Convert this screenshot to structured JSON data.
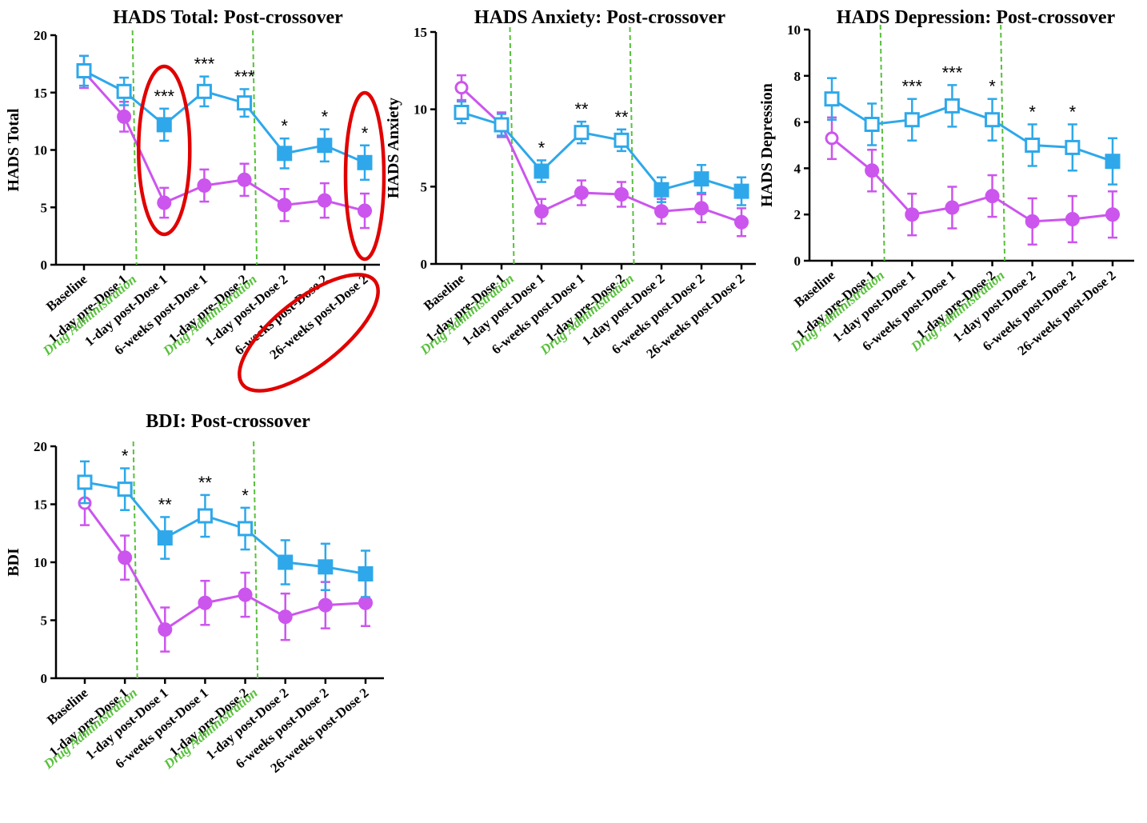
{
  "colors": {
    "treated": "#cc55ee",
    "control": "#2ea8ea",
    "marker_line": "#57c13a",
    "drug_text": "#57c13a",
    "highlight": "#e10000"
  },
  "drug_label": "Drug Administration",
  "chart_data": [
    {
      "type": "line",
      "title": "HADS Total: Post-crossover",
      "ylabel": "HADS Total",
      "ylim": [
        0,
        20
      ],
      "yticks": [
        "0",
        "5",
        "10",
        "15",
        "20"
      ],
      "categories": [
        "Baseline",
        "1-day pre-Dose 1",
        "1-day post-Dose 1",
        "6-weeks post-Dose 1",
        "1-day pre-Dose 2",
        "1-day post-Dose 2",
        "6-weeks post-Dose 2",
        "26-weeks post-Dose 2"
      ],
      "series": [
        {
          "role": "control",
          "values": [
            16.9,
            15.1,
            12.2,
            15.1,
            14.1,
            9.7,
            10.4,
            8.9
          ],
          "err": [
            1.3,
            1.2,
            1.4,
            1.3,
            1.2,
            1.3,
            1.4,
            1.5
          ],
          "open": [
            true,
            true,
            false,
            true,
            true,
            false,
            false,
            false
          ]
        },
        {
          "role": "treated",
          "values": [
            16.8,
            12.9,
            5.4,
            6.9,
            7.4,
            5.2,
            5.6,
            4.7
          ],
          "err": [
            1.4,
            1.3,
            1.3,
            1.4,
            1.4,
            1.4,
            1.5,
            1.5
          ],
          "open": [
            true,
            false,
            false,
            false,
            false,
            false,
            false,
            false
          ]
        }
      ],
      "significance": [
        "",
        "",
        "***",
        "***",
        "***",
        "*",
        "*",
        "*"
      ],
      "drug_after": [
        1,
        4
      ],
      "highlights": [
        "1-day post-Dose 1",
        "26-weeks post-Dose 2"
      ]
    },
    {
      "type": "line",
      "title": "HADS Anxiety: Post-crossover",
      "ylabel": "HADS Anxiety",
      "ylim": [
        0,
        15
      ],
      "yticks": [
        "0",
        "5",
        "10",
        "15"
      ],
      "categories": [
        "Baseline",
        "1-day pre-Dose 1",
        "1-day post-Dose 1",
        "6-weeks post-Dose 1",
        "1-day pre-Dose 2",
        "1-day post-Dose 2",
        "6-weeks post-Dose 2",
        "26-weeks post-Dose 2"
      ],
      "series": [
        {
          "role": "control",
          "values": [
            9.8,
            9.0,
            6.0,
            8.5,
            8.0,
            4.8,
            5.5,
            4.7
          ],
          "err": [
            0.7,
            0.7,
            0.7,
            0.7,
            0.7,
            0.8,
            0.9,
            0.9
          ],
          "open": [
            true,
            true,
            false,
            true,
            true,
            false,
            false,
            false
          ]
        },
        {
          "role": "treated",
          "values": [
            11.4,
            9.0,
            3.4,
            4.6,
            4.5,
            3.4,
            3.6,
            2.7
          ],
          "err": [
            0.8,
            0.8,
            0.8,
            0.8,
            0.8,
            0.8,
            0.9,
            0.9
          ],
          "open": [
            true,
            false,
            false,
            false,
            false,
            false,
            false,
            false
          ]
        }
      ],
      "significance": [
        "",
        "",
        "*",
        "**",
        "**",
        "",
        "",
        ""
      ],
      "drug_after": [
        1,
        4
      ],
      "highlights": []
    },
    {
      "type": "line",
      "title": "HADS Depression: Post-crossover",
      "ylabel": "HADS Depression",
      "ylim": [
        0,
        10
      ],
      "yticks": [
        "0",
        "2",
        "4",
        "6",
        "8",
        "10"
      ],
      "categories": [
        "Baseline",
        "1-day pre-Dose 1",
        "1-day post-Dose 1",
        "6-weeks post-Dose 1",
        "1-day pre-Dose 2",
        "1-day post-Dose 2",
        "6-weeks post-Dose 2",
        "26-weeks post-Dose 2"
      ],
      "series": [
        {
          "role": "control",
          "values": [
            7.0,
            5.9,
            6.1,
            6.7,
            6.1,
            5.0,
            4.9,
            4.3
          ],
          "err": [
            0.9,
            0.9,
            0.9,
            0.9,
            0.9,
            0.9,
            1.0,
            1.0
          ],
          "open": [
            true,
            true,
            true,
            true,
            true,
            true,
            true,
            false
          ]
        },
        {
          "role": "treated",
          "values": [
            5.3,
            3.9,
            2.0,
            2.3,
            2.8,
            1.7,
            1.8,
            2.0
          ],
          "err": [
            0.9,
            0.9,
            0.9,
            0.9,
            0.9,
            1.0,
            1.0,
            1.0
          ],
          "open": [
            true,
            false,
            false,
            false,
            false,
            false,
            false,
            false
          ]
        }
      ],
      "significance": [
        "",
        "",
        "***",
        "***",
        "*",
        "*",
        "*",
        ""
      ],
      "drug_after": [
        1,
        4
      ],
      "highlights": []
    },
    {
      "type": "line",
      "title": "BDI: Post-crossover",
      "ylabel": "BDI",
      "ylim": [
        0,
        20
      ],
      "yticks": [
        "0",
        "5",
        "10",
        "15",
        "20"
      ],
      "categories": [
        "Baseline",
        "1-day pre-Dose 1",
        "1-day post-Dose 1",
        "6-weeks post-Dose 1",
        "1-day pre-Dose 2",
        "1-day post-Dose 2",
        "6-weeks post-Dose 2",
        "26-weeks post-Dose 2"
      ],
      "series": [
        {
          "role": "control",
          "values": [
            16.9,
            16.3,
            12.1,
            14.0,
            12.9,
            10.0,
            9.6,
            9.0
          ],
          "err": [
            1.8,
            1.8,
            1.8,
            1.8,
            1.8,
            1.9,
            2.0,
            2.0
          ],
          "open": [
            true,
            true,
            false,
            true,
            true,
            false,
            false,
            false
          ]
        },
        {
          "role": "treated",
          "values": [
            15.1,
            10.4,
            4.2,
            6.5,
            7.2,
            5.3,
            6.3,
            6.5
          ],
          "err": [
            1.9,
            1.9,
            1.9,
            1.9,
            1.9,
            2.0,
            2.0,
            2.0
          ],
          "open": [
            true,
            false,
            false,
            false,
            false,
            false,
            false,
            false
          ]
        }
      ],
      "significance": [
        "",
        "*",
        "**",
        "**",
        "*",
        "",
        "",
        ""
      ],
      "drug_after": [
        1,
        4
      ],
      "highlights": []
    }
  ]
}
